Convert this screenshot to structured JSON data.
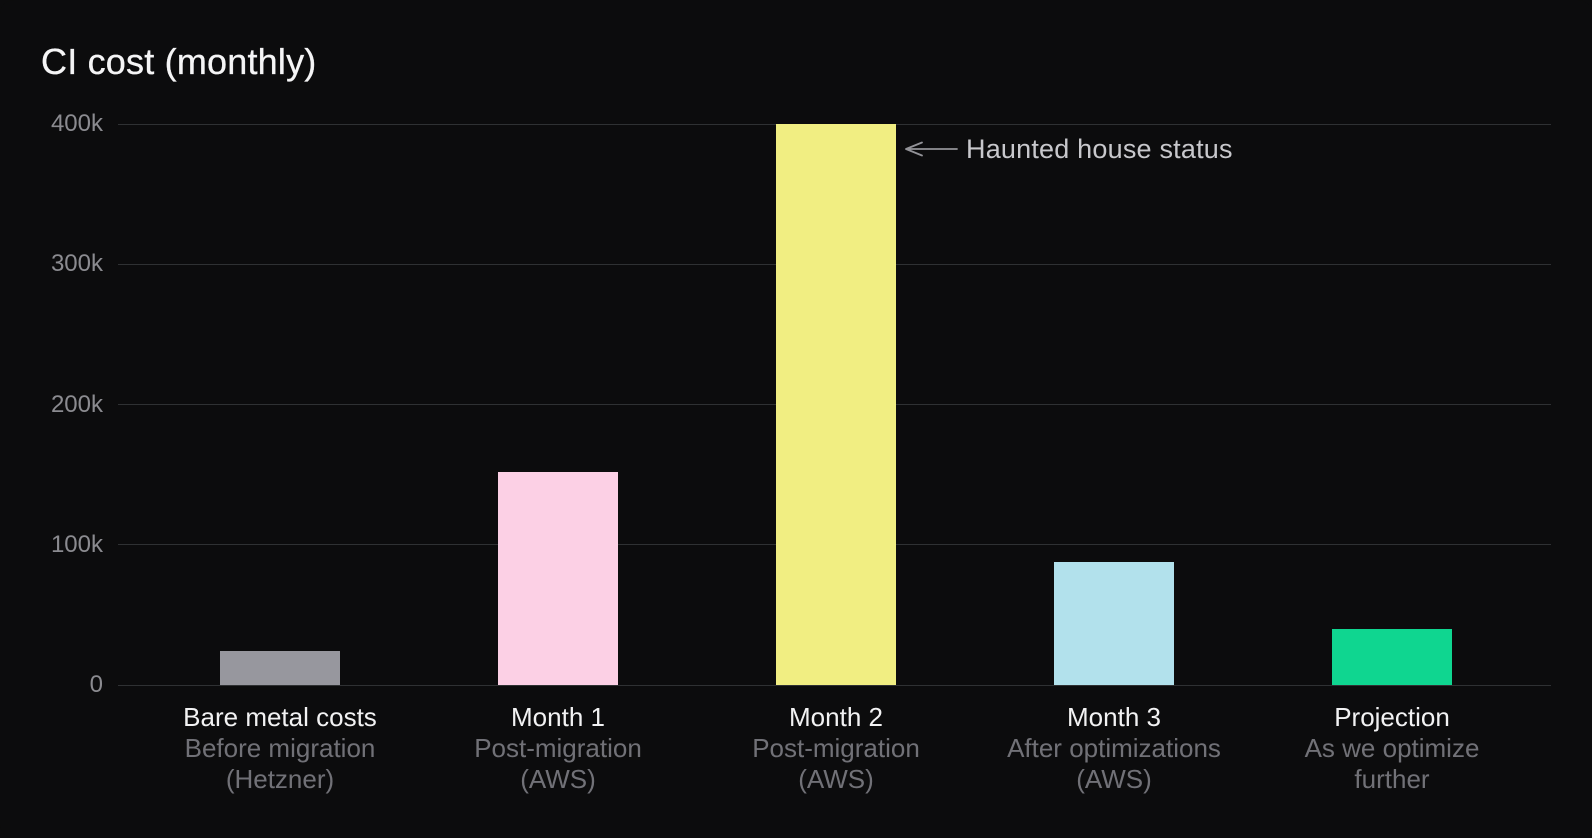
{
  "title": "CI cost (monthly)",
  "chart_data": {
    "type": "bar",
    "title": "CI cost (monthly)",
    "categories": [
      "Bare metal costs",
      "Month 1",
      "Month 2",
      "Month 3",
      "Projection"
    ],
    "sublabels": [
      [
        "Before migration",
        "(Hetzner)"
      ],
      [
        "Post-migration",
        "(AWS)"
      ],
      [
        "Post-migration",
        "(AWS)"
      ],
      [
        "After optimizations",
        "(AWS)"
      ],
      [
        "As we optimize",
        "further"
      ]
    ],
    "values": [
      24000,
      152000,
      400000,
      88000,
      40000
    ],
    "bar_colors": [
      "#97979e",
      "#fcd0e5",
      "#f1ee82",
      "#b2e1ec",
      "#0fd690"
    ],
    "ylim": [
      0,
      400000
    ],
    "ytick_values": [
      0,
      100000,
      200000,
      300000,
      400000
    ],
    "ytick_labels": [
      "0",
      "100k",
      "200k",
      "300k",
      "400k"
    ],
    "grid": "horizontal",
    "legend": "none",
    "annotation": {
      "text": "Haunted house status",
      "target_category": "Month 2"
    }
  },
  "colors": {
    "background": "#0c0c0d",
    "grid": "#2f3133",
    "axis_label": "#8b8b90",
    "label_primary": "#f2f2f3",
    "label_secondary": "#717177",
    "annotation_text": "#c8c8cc",
    "arrow": "#939398"
  }
}
